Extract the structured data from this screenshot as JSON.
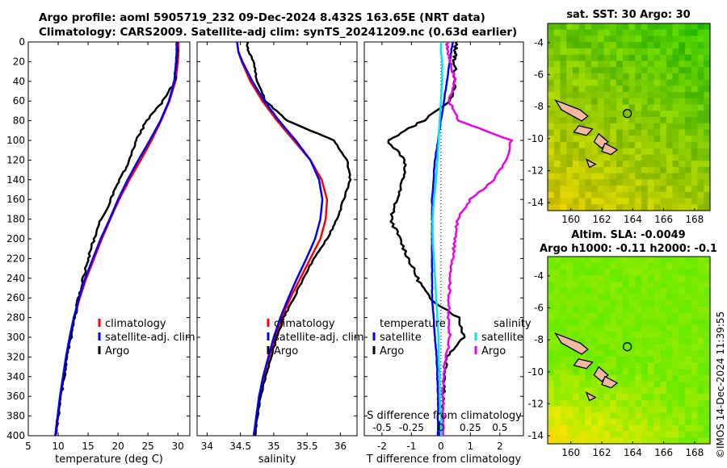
{
  "titles": {
    "line1": "Argo profile: aoml 5905719_232 09-Dec-2024 8.432S 163.65E (NRT data)",
    "line2": "Climatology: CARS2009. Satellite-adj clim: synTS_20241209.nc (0.63d earlier)"
  },
  "colors": {
    "climatology": "#ff0000",
    "satellite": "#0000ff",
    "argo": "#000000",
    "sal_sat": "#00e5ee",
    "sal_argo": "#ee00ee"
  },
  "chart_data": [
    {
      "type": "line",
      "name": "temperature",
      "xlabel": "temperature (deg C)",
      "ylabel": "",
      "xlim": [
        5,
        32
      ],
      "ylim": [
        400,
        0
      ],
      "xticks": [
        5,
        10,
        15,
        20,
        25,
        30
      ],
      "yticks": [
        0,
        20,
        40,
        60,
        80,
        100,
        120,
        140,
        160,
        180,
        200,
        220,
        240,
        260,
        280,
        300,
        320,
        340,
        360,
        380,
        400
      ],
      "legend": [
        "climatology",
        "satellite-adj. clim",
        "Argo"
      ],
      "depth": [
        0,
        10,
        20,
        40,
        60,
        80,
        100,
        120,
        140,
        160,
        180,
        200,
        220,
        240,
        260,
        280,
        300,
        320,
        340,
        360,
        380,
        400
      ],
      "series": [
        {
          "name": "climatology",
          "values": [
            30.1,
            30.1,
            30.0,
            29.6,
            28.6,
            27.2,
            25.6,
            23.8,
            21.9,
            20.2,
            18.7,
            17.3,
            16.0,
            14.7,
            13.6,
            12.7,
            12.0,
            11.4,
            10.9,
            10.4,
            10.0,
            9.6
          ]
        },
        {
          "name": "satellite-adj. clim",
          "values": [
            29.8,
            29.8,
            29.7,
            29.4,
            28.5,
            27.1,
            25.3,
            23.4,
            21.6,
            20.0,
            18.6,
            17.1,
            15.8,
            14.5,
            13.5,
            12.6,
            11.9,
            11.3,
            10.8,
            10.3,
            9.9,
            9.5
          ]
        },
        {
          "name": "Argo",
          "values": [
            29.9,
            29.9,
            29.8,
            29.5,
            27.5,
            24.8,
            23.0,
            22.0,
            20.2,
            18.8,
            17.2,
            16.0,
            15.0,
            14.2,
            13.4,
            12.8,
            12.2,
            11.5,
            11.0,
            10.5,
            10.0,
            9.5
          ]
        }
      ]
    },
    {
      "type": "line",
      "name": "salinity",
      "xlabel": "salinity",
      "xlim": [
        33.85,
        36.25
      ],
      "ylim": [
        400,
        0
      ],
      "xticks": [
        34,
        34.5,
        35,
        35.5,
        36
      ],
      "legend": [
        "climatology",
        "satellite-adj. clim",
        "Argo"
      ],
      "depth": [
        0,
        10,
        20,
        40,
        60,
        80,
        100,
        120,
        140,
        160,
        180,
        200,
        220,
        240,
        260,
        280,
        300,
        320,
        340,
        360,
        380,
        400
      ],
      "series": [
        {
          "name": "climatology",
          "values": [
            34.45,
            34.47,
            34.52,
            34.65,
            34.83,
            35.05,
            35.3,
            35.55,
            35.72,
            35.8,
            35.78,
            35.7,
            35.55,
            35.4,
            35.25,
            35.12,
            35.02,
            34.93,
            34.85,
            34.78,
            34.74,
            34.7
          ]
        },
        {
          "name": "satellite-adj. clim",
          "values": [
            34.45,
            34.47,
            34.53,
            34.68,
            34.86,
            35.08,
            35.33,
            35.55,
            35.68,
            35.73,
            35.7,
            35.62,
            35.49,
            35.35,
            35.22,
            35.1,
            35.0,
            34.92,
            34.84,
            34.78,
            34.74,
            34.7
          ]
        },
        {
          "name": "Argo",
          "values": [
            34.6,
            34.62,
            34.7,
            34.75,
            34.88,
            35.2,
            35.9,
            36.1,
            36.15,
            36.05,
            35.95,
            35.8,
            35.6,
            35.45,
            35.3,
            35.15,
            35.05,
            34.96,
            34.88,
            34.8,
            34.76,
            34.72
          ]
        }
      ]
    },
    {
      "type": "line",
      "name": "difference",
      "xlabel": "T difference from climatology",
      "xlabel_top": "S difference from climatology",
      "xlim": [
        -2.6,
        2.8
      ],
      "ylim": [
        400,
        0
      ],
      "xticks": [
        -2,
        -1,
        0,
        1,
        2
      ],
      "xticks_s_labels": [
        "-0.5",
        "-0.25",
        "0",
        "0.25",
        "0.5"
      ],
      "xticks_s_values": [
        -0.5,
        -0.25,
        0,
        0.25,
        0.5
      ],
      "s_scale": 4,
      "legend_temperature_header": "temperature",
      "legend_salinity_header": "salinity",
      "legend": [
        "satellite",
        "Argo",
        "satellite",
        "Argo"
      ],
      "depth": [
        0,
        10,
        20,
        40,
        60,
        80,
        100,
        120,
        140,
        160,
        180,
        200,
        220,
        240,
        260,
        280,
        300,
        320,
        340,
        360,
        380,
        400
      ],
      "series": [
        {
          "name": "T satellite",
          "values": [
            0.4,
            0.35,
            0.3,
            0.2,
            0.1,
            0.0,
            -0.1,
            -0.2,
            -0.25,
            -0.3,
            -0.3,
            -0.3,
            -0.3,
            -0.3,
            -0.3,
            -0.25,
            -0.2,
            -0.15,
            -0.12,
            -0.1,
            -0.1,
            -0.1
          ]
        },
        {
          "name": "T Argo",
          "values": [
            0.5,
            0.5,
            0.45,
            0.5,
            0.3,
            -0.6,
            -1.8,
            -1.2,
            -1.3,
            -1.5,
            -1.7,
            -1.4,
            -1.1,
            -0.8,
            -0.4,
            0.6,
            0.8,
            0.2,
            0.15,
            0.1,
            0.0,
            -0.05
          ]
        },
        {
          "name": "S satellite",
          "values": [
            0.0,
            0.0,
            0.01,
            0.01,
            0.0,
            -0.01,
            -0.02,
            -0.03,
            -0.04,
            -0.06,
            -0.07,
            -0.07,
            -0.06,
            -0.05,
            -0.04,
            -0.03,
            -0.02,
            -0.02,
            -0.01,
            -0.01,
            0.0,
            0.0
          ]
        },
        {
          "name": "S Argo",
          "values": [
            0.05,
            0.06,
            0.08,
            0.12,
            0.07,
            0.15,
            0.6,
            0.55,
            0.45,
            0.25,
            0.14,
            0.12,
            0.1,
            0.08,
            0.07,
            0.06,
            0.08,
            0.04,
            0.02,
            0.01,
            0.02,
            0.02
          ]
        }
      ]
    },
    {
      "type": "heatmap",
      "name": "sst-map",
      "title": "sat. SST: 30 Argo: 30",
      "xlim": [
        158.5,
        169
      ],
      "ylim": [
        -14.5,
        -2.8
      ],
      "xticks": [
        160,
        162,
        164,
        166,
        168
      ],
      "yticks": [
        -4,
        -6,
        -8,
        -10,
        -12,
        -14
      ],
      "marker": {
        "lon": 163.65,
        "lat": -8.432
      }
    },
    {
      "type": "heatmap",
      "name": "sla-map",
      "title": "Altim. SLA: -0.0049",
      "subtitle": "Argo h1000: -0.11 h2000: -0.1",
      "xlim": [
        158.5,
        169
      ],
      "ylim": [
        -14.5,
        -2.8
      ],
      "xticks": [
        160,
        162,
        164,
        166,
        168
      ],
      "yticks": [
        -4,
        -6,
        -8,
        -10,
        -12,
        -14
      ],
      "marker": {
        "lon": 163.65,
        "lat": -8.432
      }
    }
  ],
  "footer": {
    "stamp": "©IMOS 14-Dec-2024 11:39:55"
  }
}
